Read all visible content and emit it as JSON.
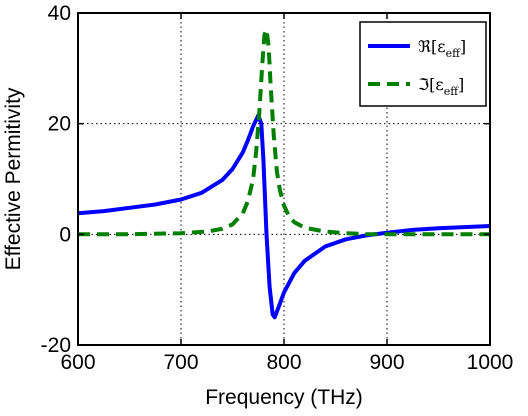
{
  "chart_data": {
    "type": "line",
    "title": "",
    "xlabel": "Frequency (THz)",
    "ylabel": "Effective Permitivity",
    "xlim": [
      600,
      1000
    ],
    "ylim": [
      -20,
      40
    ],
    "xticks": [
      600,
      700,
      800,
      900,
      1000
    ],
    "yticks": [
      -20,
      0,
      20,
      40
    ],
    "xtick_labels": [
      "600",
      "700",
      "800",
      "900",
      "1000"
    ],
    "ytick_labels": [
      "-20",
      "0",
      "20",
      "40"
    ],
    "grid": "dotted, at tick positions",
    "legend": "top-right",
    "series": [
      {
        "legend_main": "ℜ[ε",
        "legend_sub": "eff",
        "legend_end": "]",
        "color": "#0000ff",
        "style": "solid",
        "x": [
          600,
          625,
          650,
          675,
          700,
          720,
          740,
          750,
          760,
          765,
          770,
          775,
          778,
          780,
          783,
          786,
          789,
          791,
          795,
          800,
          810,
          820,
          840,
          860,
          880,
          900,
          925,
          950,
          975,
          1000
        ],
        "y": [
          3.8,
          4.2,
          4.8,
          5.4,
          6.3,
          7.5,
          9.8,
          11.8,
          14.8,
          17.0,
          19.5,
          21.5,
          20.0,
          13.5,
          0.0,
          -9.5,
          -14.5,
          -15.0,
          -13.0,
          -10.5,
          -7.0,
          -4.8,
          -2.2,
          -0.9,
          -0.2,
          0.3,
          0.8,
          1.1,
          1.3,
          1.5
        ]
      },
      {
        "legend_main": "ℑ[ε",
        "legend_sub": "eff",
        "legend_end": "]",
        "color": "#007f00",
        "style": "dashed",
        "x": [
          600,
          650,
          700,
          725,
          740,
          750,
          760,
          765,
          770,
          773,
          776,
          779,
          781,
          783,
          785,
          787,
          790,
          793,
          796,
          800,
          805,
          810,
          820,
          840,
          860,
          880,
          900,
          950,
          1000
        ],
        "y": [
          0.0,
          0.0,
          0.2,
          0.5,
          1.0,
          1.8,
          3.8,
          6.0,
          10.0,
          15.0,
          22.0,
          31.0,
          36.0,
          37.0,
          34.0,
          27.0,
          18.0,
          11.5,
          8.0,
          5.2,
          3.2,
          2.2,
          1.2,
          0.5,
          0.2,
          0.05,
          0.0,
          0.0,
          0.0
        ]
      }
    ]
  }
}
